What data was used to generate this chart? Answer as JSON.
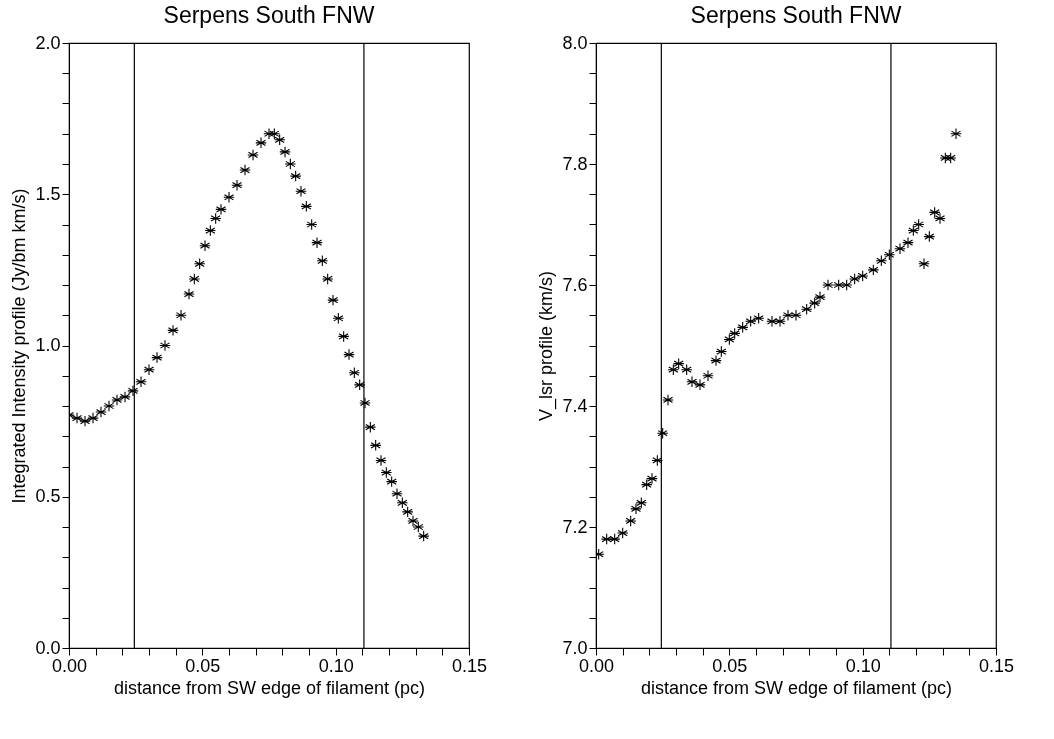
{
  "chart_data": [
    {
      "type": "scatter",
      "title": "Serpens South FNW",
      "xlabel": "distance from SW edge of filament (pc)",
      "ylabel": "Integrated Intensity profile (Jy/bm km/s)",
      "marker": "cross",
      "xlim": [
        0,
        0.15
      ],
      "ylim": [
        0,
        2
      ],
      "xticks": [
        {
          "value": 0,
          "label": "0.00"
        },
        {
          "value": 0.01,
          "label": null
        },
        {
          "value": 0.02,
          "label": null
        },
        {
          "value": 0.03,
          "label": null
        },
        {
          "value": 0.04,
          "label": null
        },
        {
          "value": 0.05,
          "label": "0.05"
        },
        {
          "value": 0.06,
          "label": null
        },
        {
          "value": 0.07,
          "label": null
        },
        {
          "value": 0.08,
          "label": null
        },
        {
          "value": 0.09,
          "label": null
        },
        {
          "value": 0.1,
          "label": "0.10"
        },
        {
          "value": 0.11,
          "label": null
        },
        {
          "value": 0.12,
          "label": null
        },
        {
          "value": 0.13,
          "label": null
        },
        {
          "value": 0.14,
          "label": null
        },
        {
          "value": 0.15,
          "label": "0.15"
        }
      ],
      "yticks": [
        {
          "value": 0,
          "label": "0.0"
        },
        {
          "value": 0.1,
          "label": null
        },
        {
          "value": 0.2,
          "label": null
        },
        {
          "value": 0.3,
          "label": null
        },
        {
          "value": 0.4,
          "label": null
        },
        {
          "value": 0.5,
          "label": "0.5"
        },
        {
          "value": 0.6,
          "label": null
        },
        {
          "value": 0.7,
          "label": null
        },
        {
          "value": 0.8,
          "label": null
        },
        {
          "value": 0.9,
          "label": null
        },
        {
          "value": 1,
          "label": "1.0"
        },
        {
          "value": 1.1,
          "label": null
        },
        {
          "value": 1.2,
          "label": null
        },
        {
          "value": 1.3,
          "label": null
        },
        {
          "value": 1.4,
          "label": null
        },
        {
          "value": 1.5,
          "label": "1.5"
        },
        {
          "value": 1.6,
          "label": null
        },
        {
          "value": 1.7,
          "label": null
        },
        {
          "value": 1.8,
          "label": null
        },
        {
          "value": 1.9,
          "label": null
        },
        {
          "value": 2,
          "label": "2.0"
        }
      ],
      "ref_lines": [
        {
          "axis": "x",
          "value": 0.0245,
          "color": "#000000"
        },
        {
          "axis": "x",
          "value": 0.1106,
          "color": "#000000"
        }
      ],
      "series": [
        {
          "color": "#000000",
          "x": [
            0,
            0.003,
            0.006,
            0.009,
            0.012,
            0.015,
            0.018,
            0.021,
            0.024,
            0.027,
            0.03,
            0.033,
            0.036,
            0.039,
            0.042,
            0.045,
            0.047,
            0.049,
            0.051,
            0.053,
            0.055,
            0.057,
            0.06,
            0.063,
            0.066,
            0.069,
            0.072,
            0.075,
            0.077,
            0.079,
            0.081,
            0.083,
            0.085,
            0.087,
            0.089,
            0.091,
            0.093,
            0.095,
            0.097,
            0.099,
            0.101,
            0.103,
            0.105,
            0.107,
            0.109,
            0.111,
            0.113,
            0.115,
            0.117,
            0.119,
            0.121,
            0.123,
            0.125,
            0.127,
            0.129,
            0.131,
            0.133
          ],
          "values": [
            0.77,
            0.76,
            0.75,
            0.76,
            0.78,
            0.8,
            0.82,
            0.83,
            0.85,
            0.88,
            0.92,
            0.96,
            1.0,
            1.05,
            1.1,
            1.17,
            1.22,
            1.27,
            1.33,
            1.38,
            1.42,
            1.45,
            1.49,
            1.53,
            1.58,
            1.63,
            1.67,
            1.7,
            1.7,
            1.68,
            1.64,
            1.6,
            1.56,
            1.51,
            1.46,
            1.4,
            1.34,
            1.28,
            1.22,
            1.15,
            1.09,
            1.03,
            0.97,
            0.91,
            0.87,
            0.81,
            0.73,
            0.67,
            0.62,
            0.58,
            0.55,
            0.51,
            0.48,
            0.45,
            0.42,
            0.4,
            0.37
          ]
        }
      ]
    },
    {
      "type": "scatter",
      "title": "Serpens South FNW",
      "xlabel": "distance from SW edge of filament (pc)",
      "ylabel": "V_lsr profile (km/s)",
      "marker": "cross",
      "xlim": [
        0,
        0.15
      ],
      "ylim": [
        7,
        8
      ],
      "xticks": [
        {
          "value": 0,
          "label": "0.00"
        },
        {
          "value": 0.01,
          "label": null
        },
        {
          "value": 0.02,
          "label": null
        },
        {
          "value": 0.03,
          "label": null
        },
        {
          "value": 0.04,
          "label": null
        },
        {
          "value": 0.05,
          "label": "0.05"
        },
        {
          "value": 0.06,
          "label": null
        },
        {
          "value": 0.07,
          "label": null
        },
        {
          "value": 0.08,
          "label": null
        },
        {
          "value": 0.09,
          "label": null
        },
        {
          "value": 0.1,
          "label": "0.10"
        },
        {
          "value": 0.11,
          "label": null
        },
        {
          "value": 0.12,
          "label": null
        },
        {
          "value": 0.13,
          "label": null
        },
        {
          "value": 0.14,
          "label": null
        },
        {
          "value": 0.15,
          "label": "0.15"
        }
      ],
      "yticks": [
        {
          "value": 7,
          "label": "7.0"
        },
        {
          "value": 7.05,
          "label": null
        },
        {
          "value": 7.1,
          "label": null
        },
        {
          "value": 7.15,
          "label": null
        },
        {
          "value": 7.2,
          "label": "7.2"
        },
        {
          "value": 7.25,
          "label": null
        },
        {
          "value": 7.3,
          "label": null
        },
        {
          "value": 7.35,
          "label": null
        },
        {
          "value": 7.4,
          "label": "7.4"
        },
        {
          "value": 7.45,
          "label": null
        },
        {
          "value": 7.5,
          "label": null
        },
        {
          "value": 7.55,
          "label": null
        },
        {
          "value": 7.6,
          "label": "7.6"
        },
        {
          "value": 7.65,
          "label": null
        },
        {
          "value": 7.7,
          "label": null
        },
        {
          "value": 7.75,
          "label": null
        },
        {
          "value": 7.8,
          "label": "7.8"
        },
        {
          "value": 7.85,
          "label": null
        },
        {
          "value": 7.9,
          "label": null
        },
        {
          "value": 7.95,
          "label": null
        },
        {
          "value": 8,
          "label": "8.0"
        }
      ],
      "ref_lines": [
        {
          "axis": "x",
          "value": 0.0245,
          "color": "#000000"
        },
        {
          "axis": "x",
          "value": 0.1106,
          "color": "#000000"
        }
      ],
      "series": [
        {
          "color": "#000000",
          "x": [
            0.001,
            0.004,
            0.007,
            0.01,
            0.013,
            0.015,
            0.017,
            0.019,
            0.021,
            0.023,
            0.025,
            0.027,
            0.029,
            0.031,
            0.034,
            0.036,
            0.039,
            0.042,
            0.045,
            0.047,
            0.05,
            0.052,
            0.055,
            0.058,
            0.061,
            0.066,
            0.069,
            0.072,
            0.075,
            0.079,
            0.082,
            0.084,
            0.087,
            0.091,
            0.094,
            0.097,
            0.1,
            0.104,
            0.107,
            0.11,
            0.114,
            0.117,
            0.119,
            0.121,
            0.123,
            0.125,
            0.127,
            0.129,
            0.131,
            0.133,
            0.135
          ],
          "values": [
            7.155,
            7.18,
            7.18,
            7.19,
            7.21,
            7.23,
            7.24,
            7.27,
            7.28,
            7.31,
            7.355,
            7.41,
            7.46,
            7.47,
            7.46,
            7.44,
            7.435,
            7.45,
            7.475,
            7.49,
            7.51,
            7.52,
            7.53,
            7.54,
            7.545,
            7.54,
            7.54,
            7.55,
            7.55,
            7.56,
            7.57,
            7.58,
            7.6,
            7.6,
            7.6,
            7.61,
            7.615,
            7.625,
            7.64,
            7.65,
            7.66,
            7.67,
            7.69,
            7.7,
            7.635,
            7.68,
            7.72,
            7.71,
            7.81,
            7.81,
            7.85
          ]
        }
      ]
    }
  ]
}
